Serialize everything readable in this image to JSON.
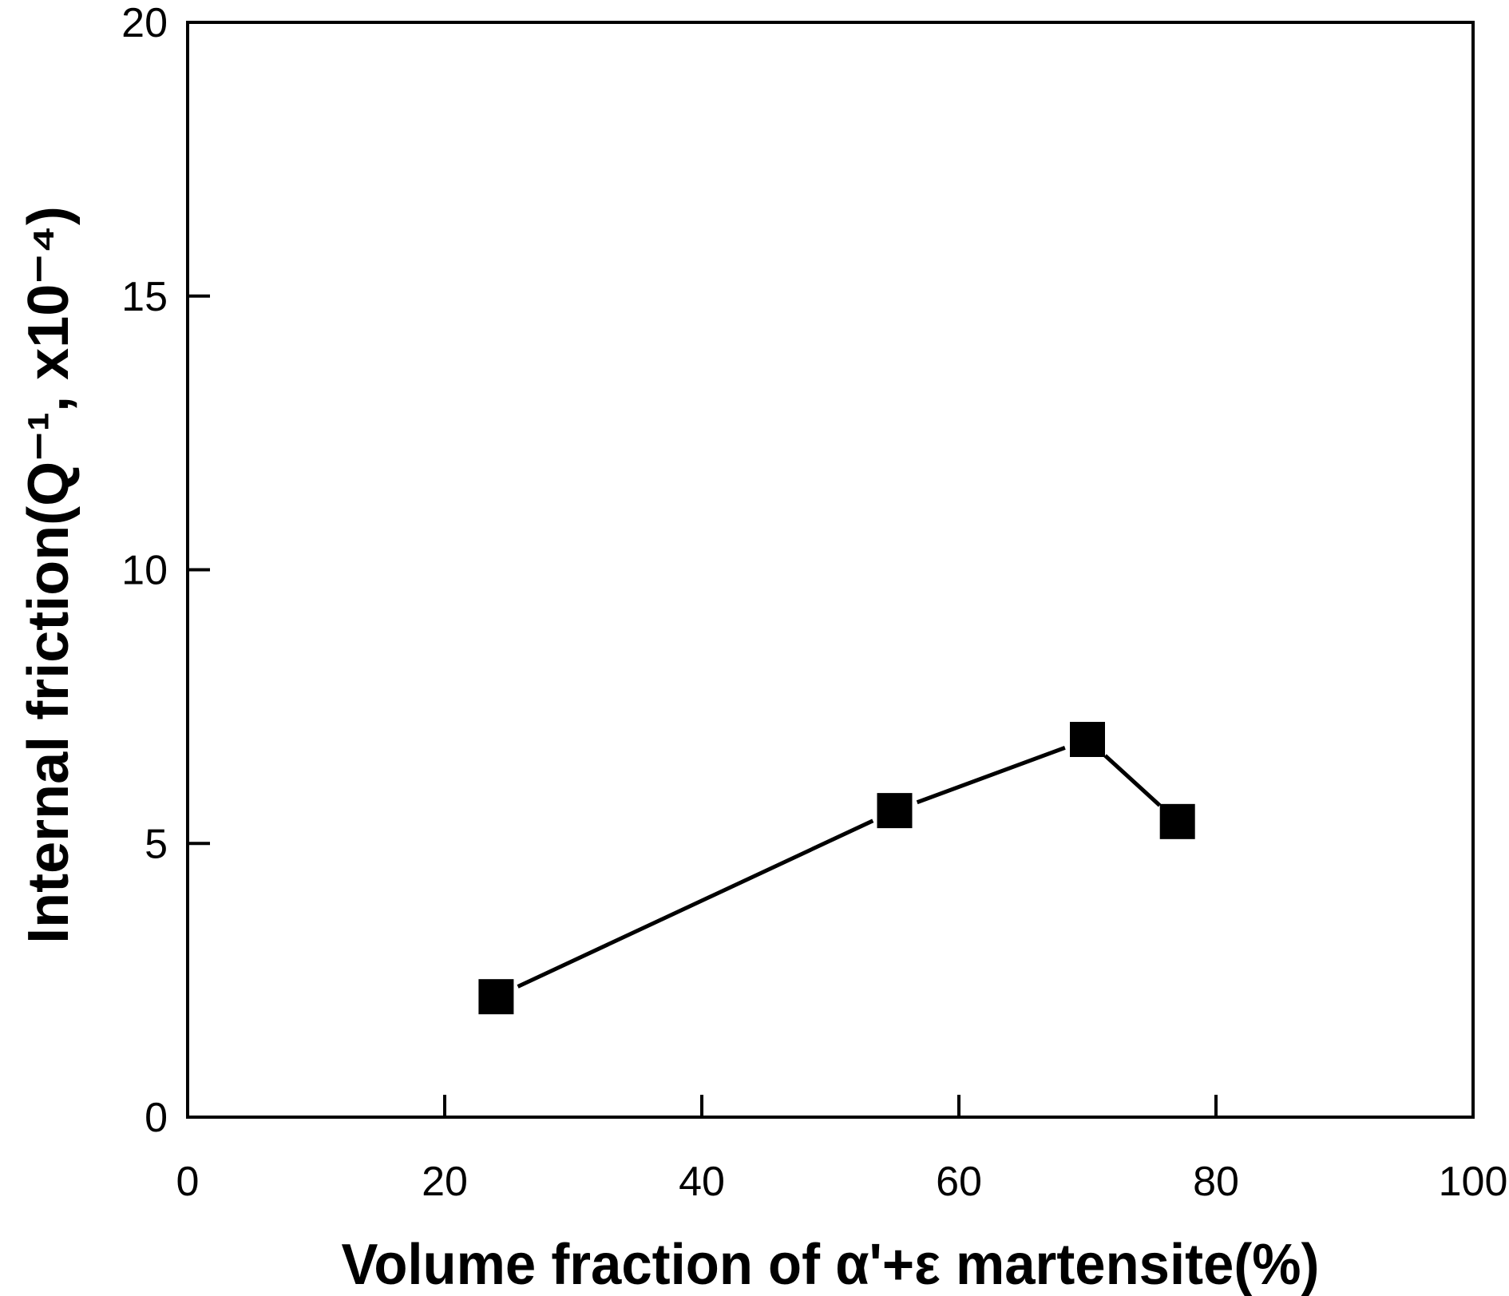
{
  "chart_data": {
    "type": "line",
    "title": "",
    "xlabel": "Volume fraction of α'+ε martensite(%)",
    "ylabel": "Internal friction(Q⁻¹, x10⁻⁴)",
    "xlim": [
      0,
      100
    ],
    "ylim": [
      0,
      20
    ],
    "xticks": [
      0,
      20,
      40,
      60,
      80,
      100
    ],
    "yticks": [
      0,
      5,
      10,
      15,
      20
    ],
    "grid": false,
    "series": [
      {
        "marker": "filled-square",
        "color": "#000000",
        "x": [
          24,
          55,
          70,
          77
        ],
        "y": [
          2.2,
          5.6,
          6.9,
          5.4
        ]
      }
    ]
  }
}
